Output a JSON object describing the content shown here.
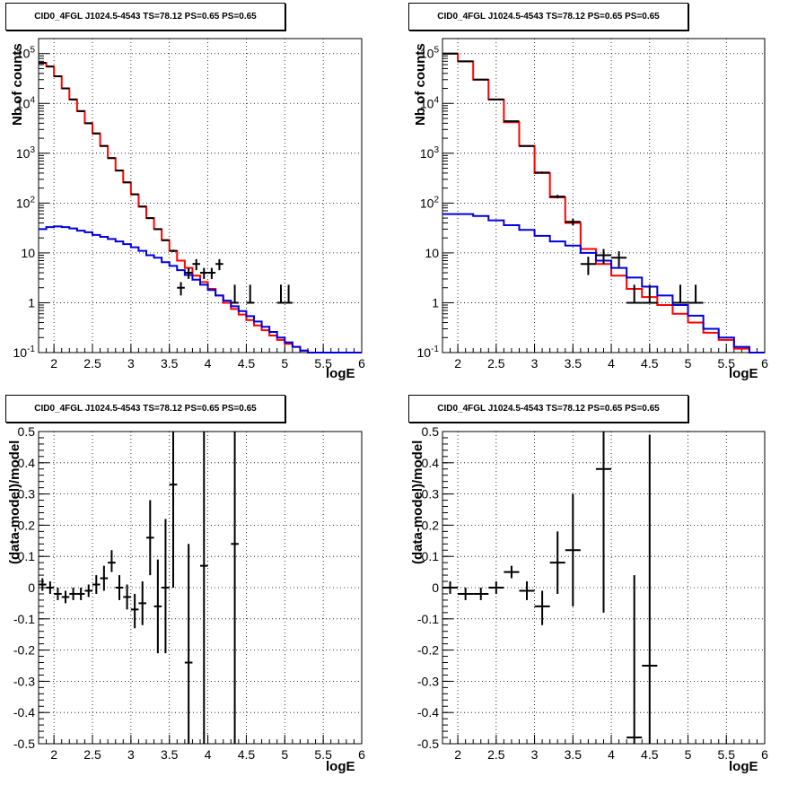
{
  "chart_data": [
    {
      "type": "line",
      "title": "CID0_4FGL J1024.5-4543 TS=78.12 PS=0.65 PS=0.65",
      "xlabel": "logE",
      "ylabel": "Nb of counts",
      "ylog": true,
      "xlim": [
        1.8,
        6.0
      ],
      "ylim": [
        0.1,
        200000
      ],
      "grid": true,
      "xticks": [
        "2",
        "2.5",
        "3",
        "3.5",
        "4",
        "4.5",
        "5",
        "5.5",
        "6"
      ],
      "yticks": [
        "10^-1",
        "1",
        "10",
        "10^2",
        "10^3",
        "10^4",
        "10^5"
      ],
      "series": [
        {
          "style": "step",
          "color": "#ff0000",
          "binwidth": 0.1,
          "x": [
            1.8,
            1.9,
            2.0,
            2.1,
            2.2,
            2.3,
            2.4,
            2.5,
            2.6,
            2.7,
            2.8,
            2.9,
            3.0,
            3.1,
            3.2,
            3.3,
            3.4,
            3.5,
            3.6,
            3.7,
            3.8,
            3.9,
            4.0,
            4.1,
            4.2,
            4.3,
            4.4,
            4.5,
            4.6,
            4.7,
            4.8,
            4.9,
            5.0,
            5.1,
            5.2,
            5.3,
            5.4,
            5.5,
            5.6,
            5.7,
            5.8,
            5.9
          ],
          "values": [
            65000,
            55000,
            35000,
            20000,
            12000,
            7000,
            4000,
            2500,
            1400,
            800,
            450,
            260,
            150,
            85,
            50,
            30,
            18,
            11,
            7,
            5,
            3.5,
            2.6,
            1.9,
            1.4,
            1.0,
            0.75,
            0.58,
            0.45,
            0.35,
            0.28,
            0.22,
            0.18,
            0.15,
            0.13,
            0.11,
            0.1,
            0.1,
            0.1,
            0.1,
            0.1,
            0.1,
            0.1
          ]
        },
        {
          "style": "step",
          "color": "#0000dd",
          "binwidth": 0.1,
          "x": [
            1.8,
            1.9,
            2.0,
            2.1,
            2.2,
            2.3,
            2.4,
            2.5,
            2.6,
            2.7,
            2.8,
            2.9,
            3.0,
            3.1,
            3.2,
            3.3,
            3.4,
            3.5,
            3.6,
            3.7,
            3.8,
            3.9,
            4.0,
            4.1,
            4.2,
            4.3,
            4.4,
            4.5,
            4.6,
            4.7,
            4.8,
            4.9,
            5.0,
            5.1,
            5.2,
            5.3,
            5.4,
            5.5,
            5.6,
            5.7,
            5.8,
            5.9
          ],
          "values": [
            30,
            33,
            34,
            33,
            31,
            28,
            26,
            23,
            21,
            19,
            17,
            15,
            13,
            11,
            9,
            8,
            6.5,
            5.5,
            4.5,
            3.6,
            2.9,
            2.3,
            1.8,
            1.4,
            1.1,
            0.85,
            0.68,
            0.54,
            0.42,
            0.33,
            0.26,
            0.2,
            0.16,
            0.13,
            0.11,
            0.1,
            0.1,
            0.1,
            0.1,
            0.1,
            0.1,
            0.1
          ]
        },
        {
          "style": "points",
          "color": "#000000",
          "halfwidth": 0.05,
          "x": [
            1.85,
            1.95,
            2.05,
            2.15,
            2.25,
            2.35,
            2.45,
            2.55,
            2.65,
            2.75,
            2.85,
            2.95,
            3.05,
            3.15,
            3.25,
            3.35,
            3.45,
            3.55,
            3.65,
            3.75,
            3.85,
            3.95,
            4.05,
            4.15,
            4.35,
            4.55,
            4.95,
            5.05
          ],
          "values": [
            65000,
            55000,
            35000,
            20000,
            12000,
            7000,
            4000,
            2500,
            1400,
            800,
            450,
            260,
            150,
            85,
            50,
            30,
            18,
            11,
            2,
            4,
            6,
            4,
            4,
            6,
            1,
            1,
            1,
            1
          ],
          "err_lo": [
            64800,
            54800,
            34800,
            19800,
            11800,
            6900,
            3950,
            2460,
            1380,
            790,
            440,
            255,
            147,
            83,
            49,
            29,
            17.4,
            10.4,
            1.4,
            3,
            4.5,
            3,
            3,
            4.5,
            1,
            1,
            1,
            1
          ],
          "err_hi": [
            65200,
            55200,
            35200,
            20200,
            12200,
            7100,
            4050,
            2540,
            1420,
            810,
            460,
            265,
            153,
            87,
            51,
            31,
            18.6,
            11.6,
            2.6,
            5,
            7.5,
            5,
            5,
            7.5,
            2.3,
            2.3,
            2.3,
            2.3
          ]
        }
      ]
    },
    {
      "type": "line",
      "title": "CID0_4FGL J1024.5-4543 TS=78.12 PS=0.65 PS=0.65",
      "xlabel": "logE",
      "ylabel": "Nb of counts",
      "ylog": true,
      "xlim": [
        1.8,
        6.0
      ],
      "ylim": [
        0.1,
        200000
      ],
      "grid": true,
      "xticks": [
        "2",
        "2.5",
        "3",
        "3.5",
        "4",
        "4.5",
        "5",
        "5.5",
        "6"
      ],
      "yticks": [
        "10^-1",
        "1",
        "10",
        "10^2",
        "10^3",
        "10^4",
        "10^5"
      ],
      "series": [
        {
          "style": "step",
          "color": "#ff0000",
          "binwidth": 0.2,
          "x": [
            1.8,
            2.0,
            2.2,
            2.4,
            2.6,
            2.8,
            3.0,
            3.2,
            3.4,
            3.6,
            3.8,
            4.0,
            4.2,
            4.4,
            4.6,
            4.8,
            5.0,
            5.2,
            5.4,
            5.6,
            5.8
          ],
          "values": [
            100000,
            70000,
            30000,
            12000,
            4200,
            1400,
            400,
            130,
            40,
            12,
            6,
            3.5,
            1.9,
            1.3,
            0.9,
            0.6,
            0.4,
            0.25,
            0.18,
            0.12,
            0.1
          ]
        },
        {
          "style": "step",
          "color": "#0000dd",
          "binwidth": 0.2,
          "x": [
            1.8,
            2.0,
            2.2,
            2.4,
            2.6,
            2.8,
            3.0,
            3.2,
            3.4,
            3.6,
            3.8,
            4.0,
            4.2,
            4.4,
            4.6,
            4.8,
            5.0,
            5.2,
            5.4,
            5.6,
            5.8
          ],
          "values": [
            60,
            60,
            55,
            45,
            36,
            29,
            22,
            17,
            14,
            10,
            7,
            5,
            3.2,
            2.1,
            1.4,
            0.9,
            0.55,
            0.3,
            0.2,
            0.13,
            0.1
          ]
        },
        {
          "style": "points",
          "color": "#000000",
          "halfwidth": 0.1,
          "x": [
            1.9,
            2.1,
            2.3,
            2.5,
            2.7,
            2.9,
            3.1,
            3.3,
            3.5,
            3.7,
            3.9,
            4.1,
            4.3,
            4.5,
            4.9,
            5.1
          ],
          "values": [
            100000,
            70000,
            30000,
            12000,
            4400,
            1400,
            410,
            135,
            42,
            6,
            9,
            8,
            1,
            1,
            1,
            1
          ],
          "err_lo": [
            99700,
            69700,
            29800,
            11900,
            4330,
            1360,
            390,
            124,
            36,
            3.6,
            6,
            5.2,
            1,
            1,
            1,
            1
          ],
          "err_hi": [
            100300,
            70300,
            30200,
            12100,
            4470,
            1440,
            430,
            146,
            48,
            8.4,
            12,
            10.8,
            2.3,
            2.3,
            2.3,
            2.3
          ]
        }
      ]
    },
    {
      "type": "scatter",
      "title": "CID0_4FGL J1024.5-4543 TS=78.12 PS=0.65 PS=0.65",
      "xlabel": "logE",
      "ylabel": "(data-model)/model",
      "ylog": false,
      "xlim": [
        1.8,
        6.0
      ],
      "ylim": [
        -0.5,
        0.5
      ],
      "grid": true,
      "xticks": [
        "2",
        "2.5",
        "3",
        "3.5",
        "4",
        "4.5",
        "5",
        "5.5",
        "6"
      ],
      "yticks": [
        "-0.5",
        "-0.4",
        "-0.3",
        "-0.2",
        "-0.1",
        "0",
        "0.1",
        "0.2",
        "0.3",
        "0.4",
        "0.5"
      ],
      "series": [
        {
          "style": "points",
          "color": "#000000",
          "halfwidth": 0.05,
          "x": [
            1.85,
            1.95,
            2.05,
            2.15,
            2.25,
            2.35,
            2.45,
            2.55,
            2.65,
            2.75,
            2.85,
            2.95,
            3.05,
            3.15,
            3.25,
            3.35,
            3.45,
            3.55,
            3.75,
            3.95,
            4.35
          ],
          "values": [
            0.01,
            0.0,
            -0.02,
            -0.03,
            -0.02,
            -0.02,
            -0.01,
            0.01,
            0.03,
            0.08,
            0.0,
            -0.03,
            -0.07,
            -0.05,
            0.16,
            -0.06,
            0.0,
            0.33,
            -0.24,
            0.07,
            0.14
          ],
          "err_lo": [
            -0.01,
            -0.02,
            -0.04,
            -0.05,
            -0.04,
            -0.04,
            -0.03,
            -0.02,
            -0.01,
            0.05,
            -0.04,
            -0.07,
            -0.13,
            -0.12,
            0.04,
            -0.21,
            -0.21,
            0.0,
            -0.6,
            -0.6,
            -0.6
          ],
          "err_hi": [
            0.03,
            0.02,
            0.0,
            -0.01,
            0.0,
            0.0,
            0.01,
            0.04,
            0.07,
            0.12,
            0.04,
            0.01,
            -0.02,
            0.02,
            0.28,
            0.09,
            0.22,
            0.6,
            0.14,
            0.6,
            0.6
          ]
        }
      ]
    },
    {
      "type": "scatter",
      "title": "CID0_4FGL J1024.5-4543 TS=78.12 PS=0.65 PS=0.65",
      "xlabel": "logE",
      "ylabel": "(data-model)/model",
      "ylog": false,
      "xlim": [
        1.8,
        6.0
      ],
      "ylim": [
        -0.5,
        0.5
      ],
      "grid": true,
      "xticks": [
        "2",
        "2.5",
        "3",
        "3.5",
        "4",
        "4.5",
        "5",
        "5.5",
        "6"
      ],
      "yticks": [
        "-0.5",
        "-0.4",
        "-0.3",
        "-0.2",
        "-0.1",
        "0",
        "0.1",
        "0.2",
        "0.3",
        "0.4",
        "0.5"
      ],
      "series": [
        {
          "style": "points",
          "color": "#000000",
          "halfwidth": 0.1,
          "x": [
            1.9,
            2.1,
            2.3,
            2.5,
            2.7,
            2.9,
            3.1,
            3.3,
            3.5,
            3.9,
            4.3,
            4.5
          ],
          "values": [
            0.0,
            -0.02,
            -0.02,
            0.0,
            0.05,
            -0.01,
            -0.06,
            0.08,
            0.12,
            0.38,
            -0.48,
            -0.25
          ],
          "err_lo": [
            -0.02,
            -0.04,
            -0.04,
            -0.02,
            0.03,
            -0.04,
            -0.12,
            -0.02,
            -0.06,
            -0.08,
            -0.6,
            -0.6
          ],
          "err_hi": [
            0.02,
            0.0,
            0.0,
            0.02,
            0.07,
            0.02,
            -0.01,
            0.18,
            0.3,
            0.6,
            0.04,
            0.49
          ]
        }
      ]
    }
  ]
}
